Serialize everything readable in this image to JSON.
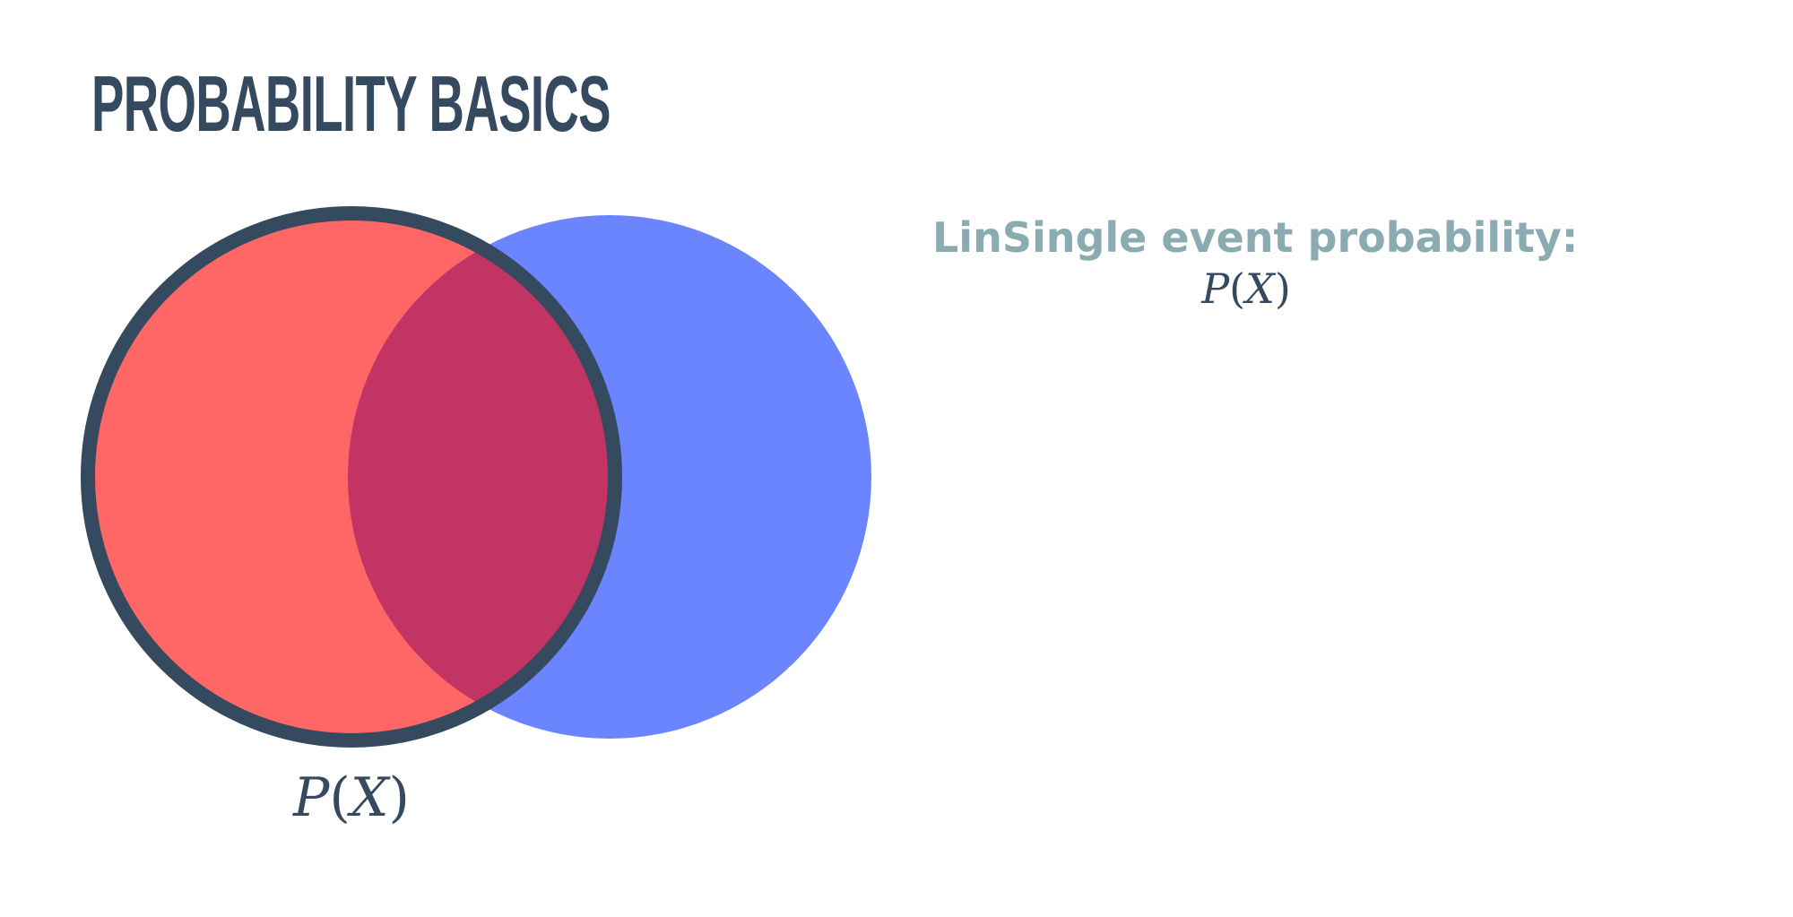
{
  "title": "PROBABILITY BASICS",
  "colors": {
    "title": "#354a5f",
    "circle_x_fill": "#ff6666",
    "circle_y_fill": "#6a85ff",
    "overlap_fill": "#c23464",
    "outline": "#354a5f",
    "heading": "#8aacb0",
    "formula": "#354a5f"
  },
  "venn": {
    "circle_x_label": {
      "symbol": "P",
      "open": "(",
      "variable": "X",
      "close": ")"
    }
  },
  "side_panel": {
    "heading": "LinSingle event probability:",
    "formula": {
      "symbol": "P",
      "open": "(",
      "variable": "X",
      "close": ")"
    }
  }
}
